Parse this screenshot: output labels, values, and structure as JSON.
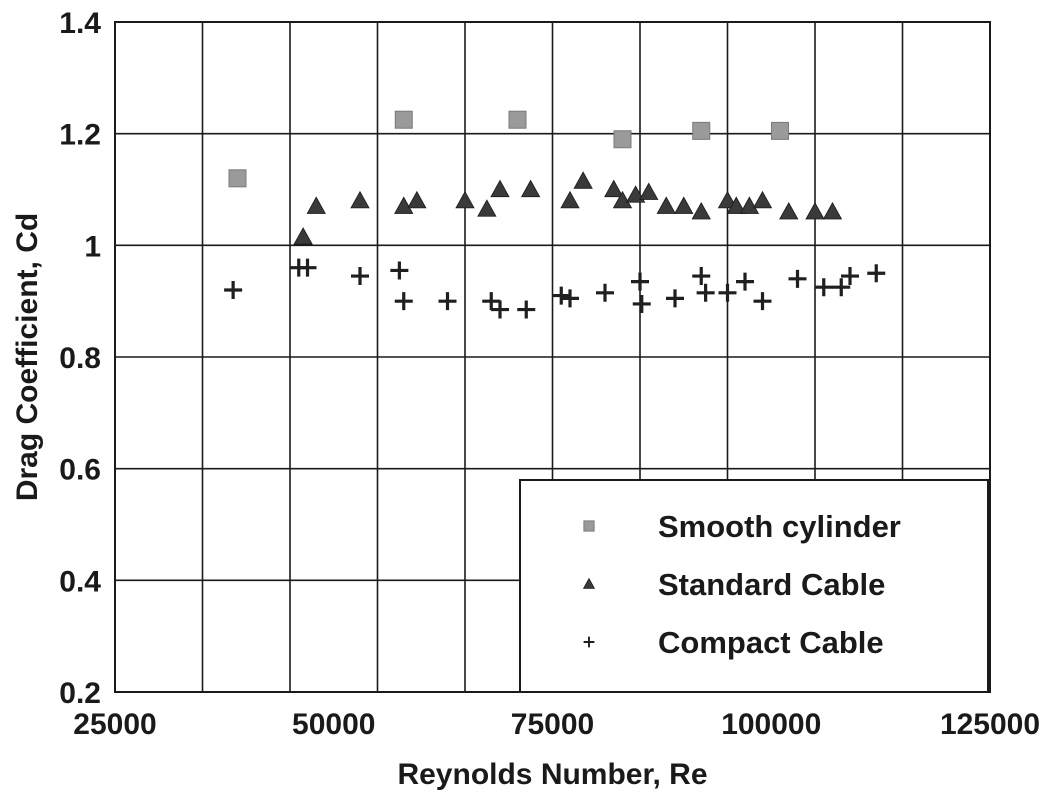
{
  "chart_data": {
    "type": "scatter",
    "title": "",
    "xlabel": "Reynolds Number, Re",
    "ylabel": "Drag Coefficient, Cd",
    "xlim": [
      25000,
      125000
    ],
    "ylim": [
      0.2,
      1.4
    ],
    "xticks": [
      25000,
      50000,
      75000,
      100000,
      125000
    ],
    "xtick_labels": [
      "25000",
      "50000",
      "75000",
      "100000",
      "125000"
    ],
    "yticks": [
      0.2,
      0.4,
      0.6,
      0.8,
      1,
      1.2,
      1.4
    ],
    "ytick_labels": [
      "0.2",
      "0.4",
      "0.6",
      "0.8",
      "1",
      "1.2",
      "1.4"
    ],
    "grid": true,
    "legend_position": "bottom-right",
    "series": [
      {
        "name": "Smooth cylinder",
        "marker": "square",
        "color": "#9a9a9a",
        "points": [
          [
            39000,
            1.12
          ],
          [
            58000,
            1.225
          ],
          [
            71000,
            1.225
          ],
          [
            83000,
            1.19
          ],
          [
            92000,
            1.205
          ],
          [
            101000,
            1.205
          ]
        ]
      },
      {
        "name": "Standard Cable",
        "marker": "triangle",
        "color": "#3a3a3a",
        "points": [
          [
            46500,
            1.015
          ],
          [
            48000,
            1.07
          ],
          [
            53000,
            1.08
          ],
          [
            58000,
            1.07
          ],
          [
            59500,
            1.08
          ],
          [
            65000,
            1.08
          ],
          [
            67500,
            1.065
          ],
          [
            69000,
            1.1
          ],
          [
            72500,
            1.1
          ],
          [
            77000,
            1.08
          ],
          [
            78500,
            1.115
          ],
          [
            82000,
            1.1
          ],
          [
            83000,
            1.08
          ],
          [
            84500,
            1.09
          ],
          [
            86000,
            1.095
          ],
          [
            88000,
            1.07
          ],
          [
            90000,
            1.07
          ],
          [
            92000,
            1.06
          ],
          [
            95000,
            1.08
          ],
          [
            96000,
            1.07
          ],
          [
            97500,
            1.07
          ],
          [
            99000,
            1.08
          ],
          [
            102000,
            1.06
          ],
          [
            105000,
            1.06
          ],
          [
            107000,
            1.06
          ]
        ]
      },
      {
        "name": "Compact Cable",
        "marker": "plus",
        "color": "#1f1f1f",
        "points": [
          [
            38500,
            0.92
          ],
          [
            46000,
            0.96
          ],
          [
            47000,
            0.96
          ],
          [
            53000,
            0.945
          ],
          [
            57500,
            0.955
          ],
          [
            58000,
            0.9
          ],
          [
            63000,
            0.9
          ],
          [
            68000,
            0.9
          ],
          [
            69000,
            0.885
          ],
          [
            72000,
            0.885
          ],
          [
            76000,
            0.91
          ],
          [
            77000,
            0.905
          ],
          [
            81000,
            0.915
          ],
          [
            85000,
            0.935
          ],
          [
            85200,
            0.895
          ],
          [
            89000,
            0.905
          ],
          [
            92000,
            0.945
          ],
          [
            92500,
            0.915
          ],
          [
            95000,
            0.915
          ],
          [
            97000,
            0.935
          ],
          [
            99000,
            0.9
          ],
          [
            103000,
            0.94
          ],
          [
            106000,
            0.925
          ],
          [
            108000,
            0.925
          ],
          [
            109000,
            0.945
          ],
          [
            112000,
            0.95
          ]
        ]
      }
    ]
  }
}
